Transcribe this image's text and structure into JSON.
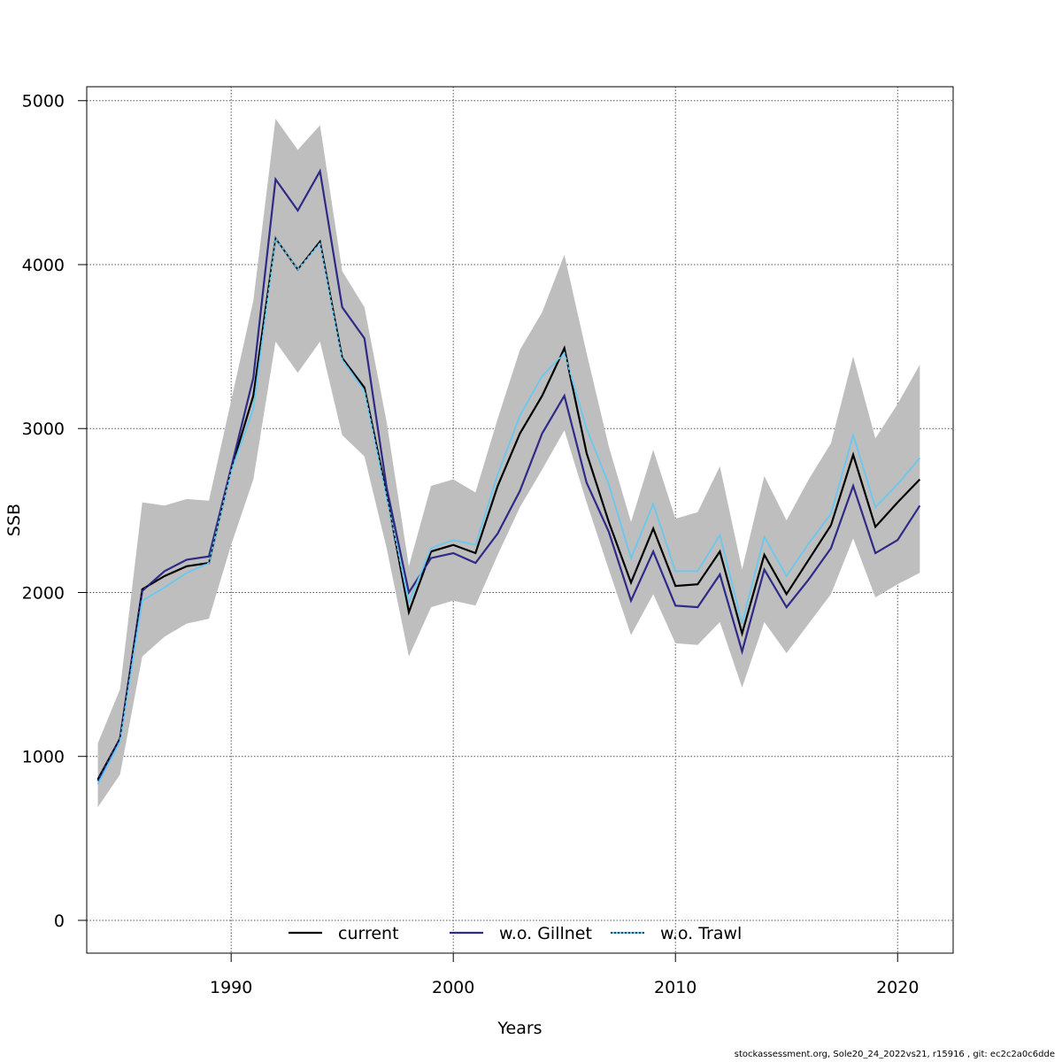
{
  "chart_data": {
    "type": "line",
    "xlabel": "Years",
    "ylabel": "SSB",
    "xlim": [
      1983.5,
      2022.5
    ],
    "ylim": [
      -200,
      5085
    ],
    "x_ticks": [
      1990,
      2000,
      2010,
      2020
    ],
    "y_ticks": [
      0,
      1000,
      2000,
      3000,
      4000,
      5000
    ],
    "grid": true,
    "legend_position": "bottom",
    "colors": {
      "band": "#bebebe",
      "current": "#000000",
      "gillnet": "#2e2a86",
      "trawl": "#68c8f0"
    },
    "x": [
      1984,
      1985,
      1986,
      1987,
      1988,
      1989,
      1990,
      1991,
      1992,
      1993,
      1994,
      1995,
      1996,
      1997,
      1998,
      1999,
      2000,
      2001,
      2002,
      2003,
      2004,
      2005,
      2006,
      2007,
      2008,
      2009,
      2010,
      2011,
      2012,
      2013,
      2014,
      2015,
      2016,
      2017,
      2018,
      2019,
      2020,
      2021
    ],
    "band": {
      "name": "confidence interval",
      "upper": [
        1080,
        1410,
        2550,
        2530,
        2570,
        2560,
        3170,
        3780,
        4890,
        4700,
        4850,
        3960,
        3740,
        3040,
        2160,
        2650,
        2690,
        2610,
        3060,
        3480,
        3710,
        4060,
        3460,
        2890,
        2430,
        2870,
        2450,
        2490,
        2770,
        2140,
        2710,
        2440,
        2690,
        2910,
        3440,
        2940,
        3150,
        3390
      ],
      "lower": [
        690,
        890,
        1610,
        1730,
        1810,
        1840,
        2290,
        2690,
        3530,
        3340,
        3530,
        2960,
        2830,
        2270,
        1610,
        1910,
        1950,
        1920,
        2230,
        2520,
        2750,
        2990,
        2550,
        2140,
        1740,
        1990,
        1690,
        1680,
        1820,
        1420,
        1820,
        1630,
        1810,
        1990,
        2330,
        1970,
        2050,
        2120
      ]
    },
    "series": [
      {
        "name": "current",
        "style": "solid",
        "values": [
          860,
          1110,
          2020,
          2100,
          2160,
          2180,
          2750,
          3200,
          4160,
          3970,
          4140,
          3430,
          3250,
          2600,
          1880,
          2250,
          2290,
          2240,
          2650,
          2970,
          3200,
          3490,
          2850,
          2430,
          2060,
          2390,
          2040,
          2050,
          2250,
          1750,
          2230,
          1990,
          2200,
          2410,
          2840,
          2400,
          2550,
          2690
        ]
      },
      {
        "name": "w.o. Gillnet",
        "style": "solid",
        "values": [
          850,
          1110,
          2010,
          2130,
          2200,
          2220,
          2760,
          3310,
          4520,
          4330,
          4570,
          3740,
          3550,
          2640,
          2000,
          2210,
          2240,
          2180,
          2360,
          2620,
          2970,
          3200,
          2670,
          2370,
          1950,
          2250,
          1920,
          1910,
          2110,
          1640,
          2140,
          1910,
          2080,
          2270,
          2650,
          2240,
          2320,
          2530
        ]
      },
      {
        "name": "w.o. Trawl",
        "style": "dotted",
        "values": [
          830,
          1090,
          1950,
          2030,
          2120,
          2180,
          2740,
          3120,
          4160,
          3970,
          4130,
          3420,
          3230,
          2580,
          1940,
          2270,
          2320,
          2290,
          2720,
          3080,
          3320,
          3460,
          3000,
          2660,
          2210,
          2540,
          2130,
          2130,
          2350,
          1810,
          2340,
          2100,
          2300,
          2480,
          2960,
          2520,
          2660,
          2820
        ]
      }
    ]
  },
  "footer": "stockassessment.org, Sole20_24_2022vs21, r15916 , git: ec2c2a0c6dde"
}
